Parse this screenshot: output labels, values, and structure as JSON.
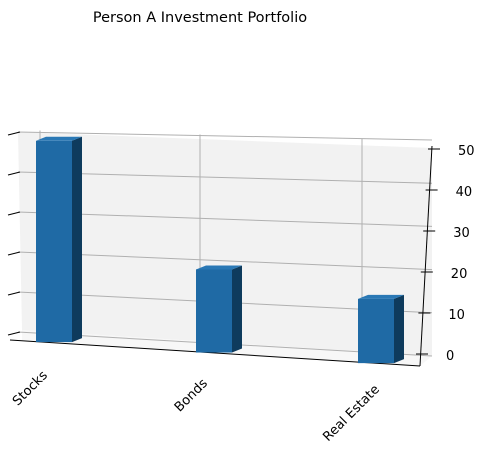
{
  "chart_data": {
    "type": "bar",
    "title": "Person A Investment Portfolio",
    "categories": [
      "Stocks",
      "Bonds",
      "Real Estate"
    ],
    "values": [
      50,
      20,
      15
    ],
    "xlabel": "",
    "ylabel": "",
    "zlim": [
      0,
      50
    ],
    "z_ticks": [
      0,
      10,
      20,
      30,
      40,
      50
    ],
    "grid": true,
    "legend": "none",
    "projection": "3d",
    "colors": {
      "bar_front": "#1f6aa5",
      "bar_top": "#2a78b5",
      "bar_side": "#0e3b5d",
      "pane": "#f2f2f2",
      "grid": "#b0b0b0",
      "axis": "#000000"
    }
  }
}
